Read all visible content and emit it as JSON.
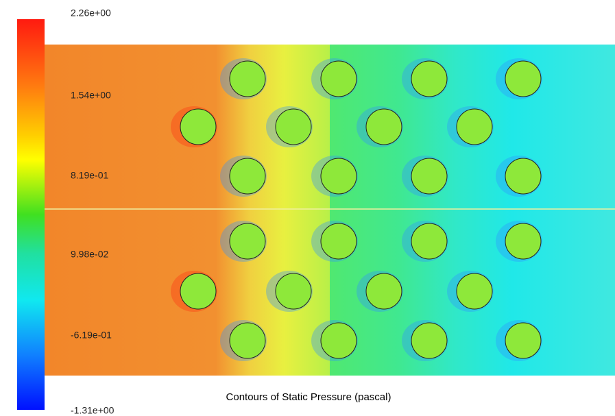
{
  "colorbar": {
    "labels": [
      "2.26e+00",
      "1.54e+00",
      "8.19e-01",
      "9.98e-02",
      "-6.19e-01",
      "-1.31e+00"
    ]
  },
  "caption": "Contours of Static Pressure (pascal)"
}
